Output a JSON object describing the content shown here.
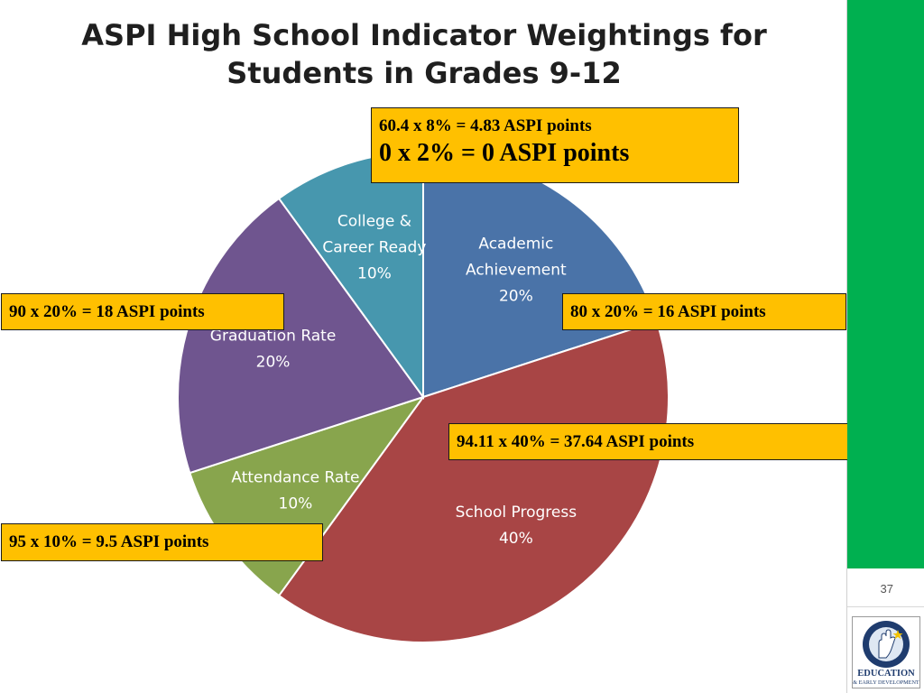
{
  "slide": {
    "title_line1": "ASPI High School Indicator Weightings for",
    "title_line2": "Students in Grades 9-12",
    "page_number": "37"
  },
  "callouts": {
    "top_line1": "60.4 x 8% = 4.83 ASPI points",
    "top_line2": "0 x 2% = 0 ASPI points",
    "graduation": "90 x 20% = 18 ASPI points",
    "academic": "80 x 20% = 16 ASPI points",
    "progress": "94.11 x 40% = 37.64 ASPI points",
    "attendance": "95 x 10% = 9.5 ASPI points"
  },
  "logo": {
    "line1": "EDUCATION",
    "line2": "& EARLY DEVELOPMENT",
    "ring_text": "ALASKA DEPARTMENT OF"
  },
  "colors": {
    "accent_bar": "#00b050",
    "callout_fill": "#ffc000"
  },
  "chart_data": {
    "type": "pie",
    "title": "ASPI High School Indicator Weightings for Students in Grades 9-12",
    "start_angle_deg": 0,
    "direction": "clockwise",
    "slices": [
      {
        "name": "Academic Achievement",
        "label_lines": [
          "Academic",
          "Achievement",
          "20%"
        ],
        "value": 20,
        "color": "#4a73a8"
      },
      {
        "name": "School Progress",
        "label_lines": [
          "School Progress",
          "40%"
        ],
        "value": 40,
        "color": "#a84545"
      },
      {
        "name": "Attendance Rate",
        "label_lines": [
          "Attendance Rate",
          "10%"
        ],
        "value": 10,
        "color": "#88a54d"
      },
      {
        "name": "Graduation Rate",
        "label_lines": [
          "Graduation Rate",
          "20%"
        ],
        "value": 20,
        "color": "#6f558f"
      },
      {
        "name": "College & Career Ready",
        "label_lines": [
          "College &",
          "Career Ready",
          "10%"
        ],
        "value": 10,
        "color": "#4797ae"
      }
    ]
  }
}
